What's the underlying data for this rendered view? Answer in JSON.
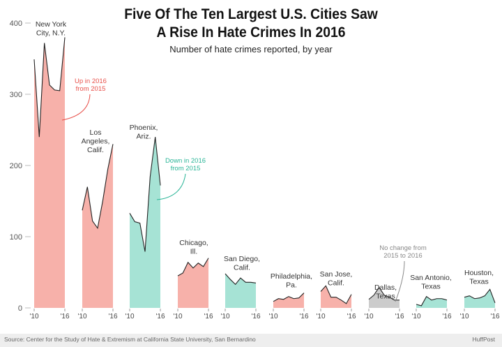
{
  "title": [
    "Five Of The Ten Largest U.S. Cities Saw",
    "A Rise In Hate Crimes In 2016"
  ],
  "subtitle": "Number of hate crimes reported, by year",
  "source": "Source: Center for the Study of Hate & Extremism at California State University, San Bernardino",
  "brand": "HuffPost",
  "colors": {
    "up": "#f7b1aa",
    "down": "#a6e3d5",
    "same": "#cccccc",
    "line": "#222222",
    "annot_up": "#e8504a",
    "annot_down": "#2ab597",
    "annot_same": "#888888"
  },
  "chart_data": {
    "type": "area",
    "layout": "small-multiples",
    "years": [
      2010,
      2011,
      2012,
      2013,
      2014,
      2015,
      2016
    ],
    "x_tick_labels": [
      "'10",
      "'16"
    ],
    "yticks": [
      0,
      100,
      200,
      300,
      400
    ],
    "ylim": [
      0,
      400
    ],
    "series": [
      {
        "name": [
          "New York",
          "City, N.Y."
        ],
        "values": [
          349,
          240,
          372,
          313,
          306,
          305,
          380
        ],
        "trend": "up"
      },
      {
        "name": [
          "Los",
          "Angeles,",
          "Calif."
        ],
        "values": [
          137,
          170,
          122,
          112,
          150,
          195,
          230
        ],
        "trend": "up"
      },
      {
        "name": [
          "Phoenix,",
          "Ariz."
        ],
        "values": [
          133,
          121,
          119,
          79,
          184,
          240,
          172
        ],
        "trend": "down"
      },
      {
        "name": [
          "Chicago,",
          "Ill."
        ],
        "values": [
          45,
          49,
          64,
          56,
          63,
          58,
          70
        ],
        "trend": "up"
      },
      {
        "name": [
          "San Diego,",
          "Calif."
        ],
        "values": [
          48,
          40,
          33,
          42,
          36,
          36,
          35
        ],
        "trend": "down"
      },
      {
        "name": [
          "Philadelphia,",
          "Pa."
        ],
        "values": [
          9,
          13,
          12,
          16,
          13,
          14,
          21
        ],
        "trend": "up"
      },
      {
        "name": [
          "San Jose,",
          "Calif."
        ],
        "values": [
          23,
          31,
          15,
          15,
          11,
          6,
          19
        ],
        "trend": "up"
      },
      {
        "name": [
          "Dallas,",
          "Texas"
        ],
        "values": [
          12,
          18,
          29,
          18,
          15,
          11,
          11
        ],
        "trend": "same"
      },
      {
        "name": [
          "San Antonio,",
          "Texas"
        ],
        "values": [
          5,
          3,
          16,
          11,
          13,
          13,
          11
        ],
        "trend": "down"
      },
      {
        "name": [
          "Houston,",
          "Texas"
        ],
        "values": [
          15,
          17,
          13,
          14,
          17,
          26,
          7
        ],
        "trend": "down"
      }
    ],
    "annotations": {
      "up": [
        "Up in 2016",
        "from 2015"
      ],
      "down": [
        "Down in 2016",
        "from 2015"
      ],
      "same": [
        "No change from",
        "2015 to 2016"
      ]
    }
  }
}
